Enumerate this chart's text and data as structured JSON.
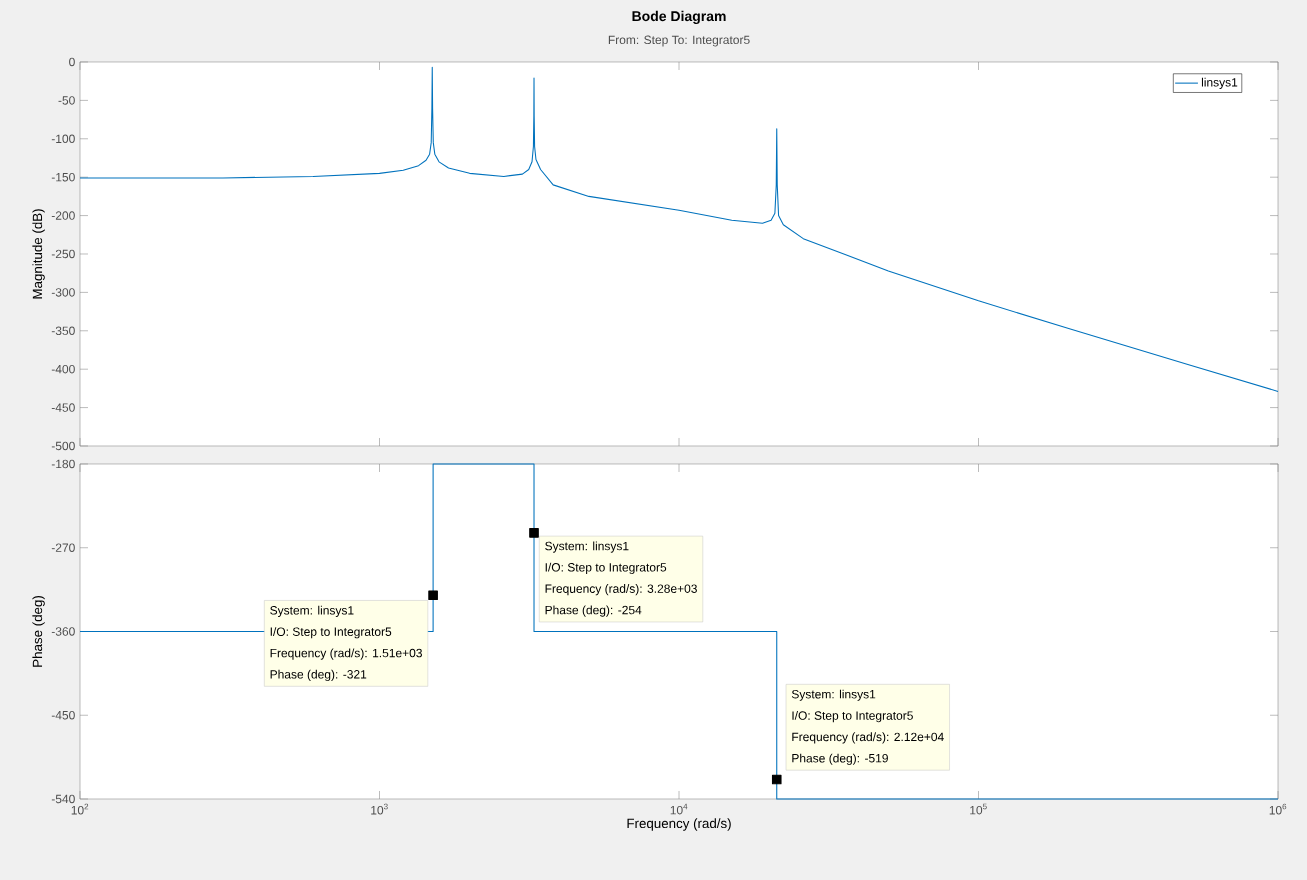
{
  "chart_data": [
    {
      "type": "line",
      "title": "Bode Diagram",
      "subtitle": "From: Step  To: Integrator5",
      "ylabel": "Magnitude (dB)",
      "log": "x",
      "xlim": [
        100,
        1000000
      ],
      "xticks": [
        {
          "value": 100,
          "label": null
        },
        {
          "value": 1000,
          "label": null
        },
        {
          "value": 10000,
          "label": null
        },
        {
          "value": 100000,
          "label": null
        },
        {
          "value": 1000000,
          "label": null
        }
      ],
      "ylim": [
        -500,
        0
      ],
      "yticks": [
        -500,
        -450,
        -400,
        -350,
        -300,
        -250,
        -200,
        -150,
        -100,
        -50,
        0
      ],
      "tick_labels": "y",
      "legend": "top right",
      "series": [
        {
          "name": "linsys1",
          "color": "#0072bd",
          "x": [
            100,
            300,
            600,
            1000,
            1200,
            1350,
            1430,
            1470,
            1488,
            1496,
            1500,
            1504,
            1512,
            1530,
            1580,
            1700,
            2000,
            2600,
            3000,
            3150,
            3230,
            3265,
            3276,
            3280,
            3284,
            3295,
            3330,
            3450,
            3800,
            5000,
            10000,
            15000,
            19000,
            20300,
            20900,
            21120,
            21200,
            21280,
            21500,
            22300,
            26000,
            50000,
            100000,
            200000,
            500000,
            1000000
          ],
          "values": [
            -151,
            -151,
            -149,
            -145,
            -141,
            -135,
            -128,
            -120,
            -105,
            -60,
            -7,
            -60,
            -105,
            -120,
            -130,
            -138,
            -145,
            -149,
            -146,
            -140,
            -130,
            -110,
            -70,
            -21,
            -70,
            -110,
            -127,
            -140,
            -160,
            -175,
            -193,
            -206,
            -210,
            -206,
            -197,
            -160,
            -87,
            -160,
            -200,
            -212,
            -230,
            -272,
            -311,
            -347,
            -394,
            -429
          ]
        }
      ]
    },
    {
      "type": "line",
      "xlabel": "Frequency  (rad/s)",
      "ylabel": "Phase (deg)",
      "log": "x",
      "xlim": [
        100,
        1000000
      ],
      "xticks": [
        {
          "value": 100,
          "label": "10$^{2}$"
        },
        {
          "value": 1000,
          "label": "10$^{3}$"
        },
        {
          "value": 10000,
          "label": "10$^{4}$"
        },
        {
          "value": 100000,
          "label": "10$^{5}$"
        },
        {
          "value": 1000000,
          "label": "10$^{6}$"
        }
      ],
      "ylim": [
        -540,
        -180
      ],
      "yticks": [
        -540,
        -450,
        -360,
        -270,
        -180
      ],
      "series": [
        {
          "color": "#0072bd",
          "x": [
            100,
            1510,
            1510,
            3280,
            3280,
            21200,
            21200,
            1000000
          ],
          "values": [
            -360,
            -360,
            -180,
            -180,
            -360,
            -360,
            -540,
            -540
          ]
        },
        {
          "type": "scatter",
          "marker": "square",
          "color": "#000000",
          "x": [
            1510,
            3280,
            21200
          ],
          "values": [
            -321,
            -254,
            -519
          ]
        }
      ],
      "annotations": [
        "System: linsys1",
        "I/O: Step to Integrator5",
        "Frequency (rad/s): 1.51e+03",
        "Phase (deg): -321",
        "System: linsys1",
        "I/O: Step to Integrator5",
        "Frequency (rad/s): 3.28e+03",
        "Phase (deg): -254",
        "System: linsys1",
        "I/O: Step to Integrator5",
        "Frequency (rad/s): 2.12e+04",
        "Phase (deg): -519"
      ]
    }
  ]
}
